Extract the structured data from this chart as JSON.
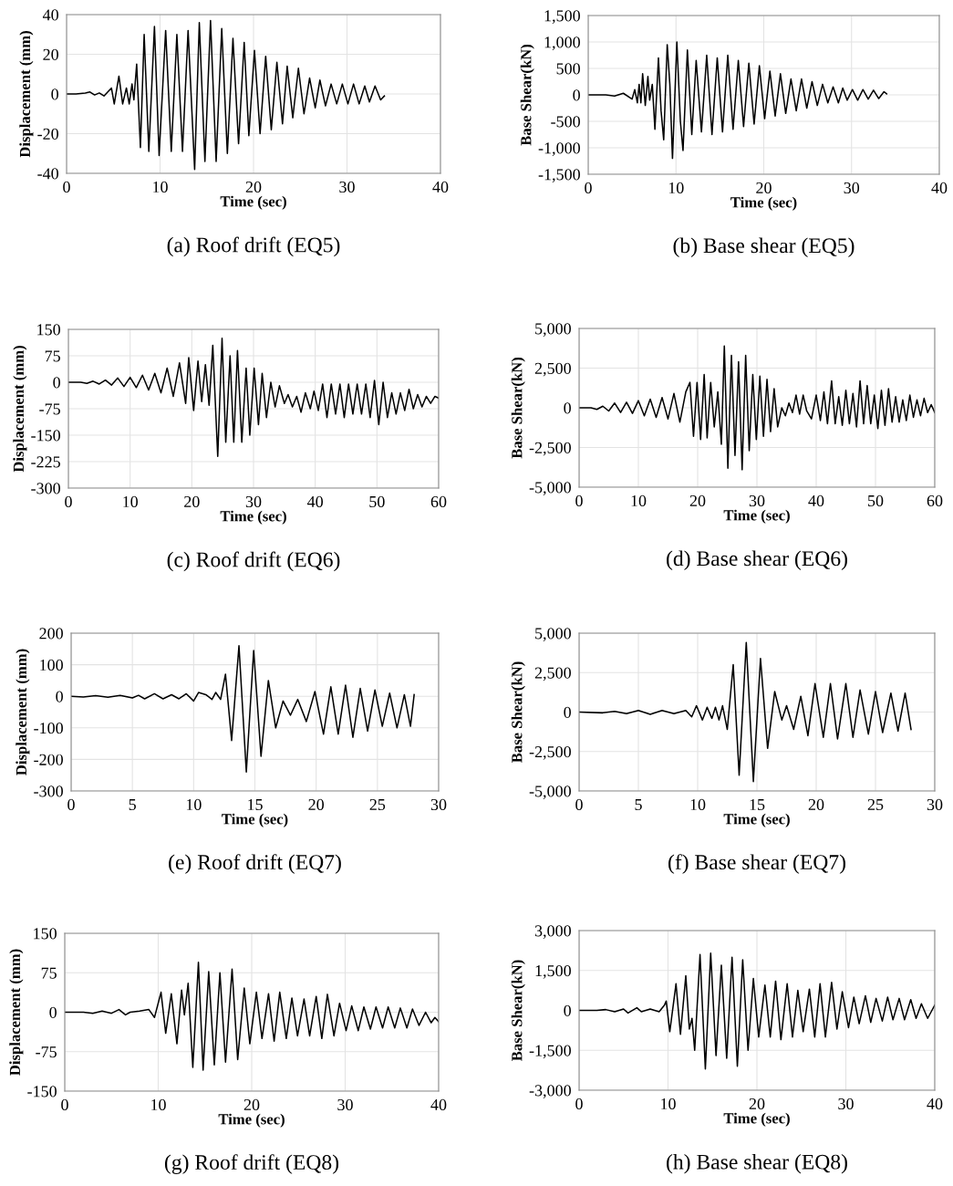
{
  "chart_data": [
    {
      "type": "line",
      "title": "(a) Roof drift (EQ5)",
      "xlabel": "Time (sec)",
      "ylabel": "Displacement (mm)",
      "color": "#000000",
      "grid": true,
      "x": [
        0,
        1,
        2,
        2.5,
        3,
        3.5,
        4,
        4.8,
        5.1,
        5.6,
        6,
        6.4,
        6.7,
        7.0,
        7.2,
        7.5,
        7.9,
        8.3,
        8.8,
        9.4,
        9.9,
        10.6,
        11.2,
        11.8,
        12.4,
        13.0,
        13.7,
        14.2,
        14.8,
        15.4,
        16.0,
        16.6,
        17.2,
        17.8,
        18.4,
        19.0,
        19.5,
        20.1,
        20.7,
        21.3,
        21.9,
        22.5,
        23.1,
        23.6,
        24.2,
        24.8,
        25.4,
        26.0,
        26.6,
        27.1,
        27.7,
        28.3,
        28.9,
        29.5,
        30.1,
        30.7,
        31.3,
        31.9,
        32.4,
        33.0,
        33.6,
        34.0
      ],
      "values": [
        0,
        0,
        0.5,
        1,
        -0.5,
        0.5,
        -1,
        3,
        -5,
        9,
        -5,
        3,
        -5,
        5,
        -3,
        15,
        -27,
        30,
        -29,
        34,
        -31,
        32,
        -29,
        30,
        -29,
        32,
        -38,
        36,
        -34,
        37,
        -34,
        33,
        -30,
        28,
        -25,
        26,
        -21,
        22,
        -20,
        19,
        -18,
        16,
        -15,
        14,
        -12,
        13,
        -10,
        8,
        -7,
        7,
        -6,
        5,
        -5,
        5,
        -5,
        5,
        -5,
        4,
        -4,
        4,
        -3,
        -1
      ],
      "xlim": [
        0,
        40
      ],
      "xticks": [
        0,
        10,
        20,
        30,
        40
      ],
      "ylim": [
        -40,
        40
      ],
      "yticks": [
        -40,
        -20,
        0,
        20,
        40
      ]
    },
    {
      "type": "line",
      "title": "(b) Base shear (EQ5)",
      "xlabel": "Time (sec)",
      "ylabel": "Base Shear(kN)",
      "color": "#000000",
      "grid": true,
      "x": [
        0,
        2,
        3,
        4,
        5,
        5.3,
        5.6,
        5.8,
        6.0,
        6.2,
        6.5,
        6.8,
        7.0,
        7.3,
        7.6,
        8.0,
        8.3,
        8.6,
        9.0,
        9.3,
        9.6,
        10.1,
        10.5,
        10.8,
        11.3,
        11.8,
        12.3,
        12.9,
        13.5,
        14.1,
        14.7,
        15.3,
        15.9,
        16.5,
        17.1,
        17.7,
        18.3,
        18.9,
        19.5,
        20.1,
        20.7,
        21.3,
        21.9,
        22.5,
        23.1,
        23.7,
        24.3,
        24.9,
        25.5,
        26.1,
        26.7,
        27.3,
        27.9,
        28.5,
        29.0,
        29.5,
        30.1,
        30.7,
        31.3,
        31.9,
        32.5,
        33.1,
        33.7,
        34.0
      ],
      "values": [
        0,
        0,
        -20,
        30,
        -80,
        100,
        -150,
        200,
        -150,
        400,
        -200,
        350,
        -100,
        200,
        -650,
        700,
        -300,
        -850,
        950,
        200,
        -1200,
        1000,
        -500,
        -1050,
        850,
        -750,
        650,
        -700,
        750,
        -750,
        700,
        -700,
        750,
        -650,
        650,
        -600,
        600,
        -550,
        550,
        -450,
        450,
        -400,
        400,
        -350,
        300,
        -300,
        300,
        -250,
        250,
        -200,
        200,
        -150,
        150,
        -150,
        130,
        -100,
        100,
        -100,
        100,
        -80,
        90,
        -70,
        60,
        20
      ],
      "xlim": [
        0,
        40
      ],
      "xticks": [
        0,
        10,
        20,
        30,
        40
      ],
      "ylim": [
        -1500,
        1500
      ],
      "yticks": [
        {
          "value": -1500,
          "label": "-1,500"
        },
        {
          "value": -1000,
          "label": "-1,000"
        },
        -500,
        0,
        500,
        {
          "value": 1000,
          "label": "1,000"
        },
        {
          "value": 1500,
          "label": "1,500"
        }
      ]
    },
    {
      "type": "line",
      "title": "(c) Roof drift (EQ6)",
      "xlabel": "Time (sec)",
      "ylabel": "Displacement (mm)",
      "color": "#000000",
      "grid": true,
      "x": [
        0,
        2,
        3,
        4,
        5,
        6,
        7,
        8,
        9,
        10,
        11,
        12,
        13,
        14,
        15,
        16,
        17,
        18,
        19,
        19.5,
        20.3,
        21,
        21.6,
        22.2,
        22.8,
        23.4,
        24.2,
        24.9,
        25.5,
        26.2,
        26.8,
        27.4,
        28.1,
        28.8,
        29.4,
        30.1,
        30.8,
        31.4,
        32.1,
        32.8,
        33.5,
        34.2,
        35.0,
        35.6,
        36.3,
        37,
        37.7,
        38.4,
        39.2,
        39.8,
        40.5,
        41.2,
        41.9,
        42.6,
        43.3,
        44,
        44.7,
        45.4,
        46.1,
        46.8,
        47.5,
        48.2,
        48.9,
        49.6,
        50.3,
        51,
        51.7,
        52.4,
        53.1,
        53.8,
        54.5,
        55.2,
        55.9,
        56.6,
        57.3,
        58,
        58.7,
        59.4,
        60
      ],
      "values": [
        0,
        0,
        -3,
        3,
        -5,
        6,
        -8,
        12,
        -12,
        14,
        -15,
        20,
        -22,
        25,
        -30,
        40,
        -40,
        55,
        -60,
        70,
        -80,
        60,
        -55,
        50,
        -65,
        105,
        -210,
        125,
        -170,
        75,
        -170,
        90,
        -170,
        40,
        -150,
        40,
        -120,
        25,
        -100,
        0,
        -70,
        -10,
        -60,
        -35,
        -70,
        -40,
        -85,
        -30,
        -75,
        -25,
        -80,
        -5,
        -100,
        -5,
        -90,
        -5,
        -100,
        -5,
        -90,
        -5,
        -90,
        -5,
        -100,
        5,
        -120,
        0,
        -100,
        -30,
        -90,
        -30,
        -80,
        -20,
        -75,
        -35,
        -70,
        -40,
        -60,
        -40,
        -45
      ],
      "xlim": [
        0,
        60
      ],
      "xticks": [
        0,
        10,
        20,
        30,
        40,
        50,
        60
      ],
      "ylim": [
        -300,
        150
      ],
      "yticks": [
        -300,
        -225,
        -150,
        -75,
        0,
        75,
        150
      ]
    },
    {
      "type": "line",
      "title": "(d) Base shear (EQ6)",
      "xlabel": "Time (sec)",
      "ylabel": "Base Shear(kN)",
      "color": "#000000",
      "grid": true,
      "x": [
        0,
        2,
        3,
        4,
        5,
        6,
        7,
        8,
        9,
        10,
        11,
        12,
        13,
        14,
        15,
        16,
        17,
        18,
        18.7,
        19.3,
        19.9,
        20.5,
        21.1,
        21.6,
        22.2,
        22.8,
        23.4,
        24.0,
        24.5,
        25.1,
        25.7,
        26.3,
        26.9,
        27.5,
        28.1,
        28.7,
        29.3,
        29.9,
        30.5,
        31.1,
        31.7,
        32.3,
        32.9,
        33.5,
        34.2,
        34.8,
        35.4,
        36,
        36.6,
        37.2,
        37.8,
        38.4,
        39.2,
        40,
        40.7,
        41.3,
        41.9,
        42.6,
        43.2,
        43.8,
        44.4,
        45,
        45.6,
        46.2,
        46.8,
        47.4,
        48,
        48.6,
        49.2,
        49.8,
        50.4,
        51,
        51.6,
        52.2,
        52.8,
        53.4,
        54,
        54.6,
        55.2,
        55.8,
        56.4,
        57,
        57.6,
        58.2,
        58.8,
        59.4,
        60
      ],
      "values": [
        0,
        0,
        -100,
        100,
        -200,
        300,
        -300,
        350,
        -350,
        450,
        -500,
        550,
        -600,
        650,
        -700,
        900,
        -900,
        1000,
        1600,
        -1800,
        1600,
        -2000,
        2100,
        -1900,
        1600,
        -1200,
        1000,
        -2300,
        3900,
        -3800,
        3300,
        -3000,
        2900,
        -3900,
        3300,
        -2700,
        2100,
        -2000,
        2000,
        -1800,
        1800,
        -1500,
        1200,
        -1200,
        0,
        -500,
        300,
        -300,
        800,
        -400,
        800,
        -200,
        -700,
        800,
        -800,
        1000,
        -1000,
        1700,
        -1000,
        700,
        -1100,
        1100,
        -1000,
        900,
        -1200,
        1700,
        -1000,
        1400,
        -1000,
        800,
        -1300,
        1100,
        -1100,
        1200,
        -900,
        700,
        -900,
        500,
        -800,
        800,
        -600,
        500,
        -500,
        600,
        -300,
        200,
        -300
      ],
      "xlim": [
        0,
        60
      ],
      "xticks": [
        0,
        10,
        20,
        30,
        40,
        50,
        60
      ],
      "ylim": [
        -5000,
        5000
      ],
      "yticks": [
        {
          "value": -5000,
          "label": "-5,000"
        },
        {
          "value": -2500,
          "label": "-2,500"
        },
        0,
        {
          "value": 2500,
          "label": "2,500"
        },
        {
          "value": 5000,
          "label": "5,000"
        }
      ]
    },
    {
      "type": "line",
      "title": "(e) Roof drift (EQ7)",
      "xlabel": "Time (sec)",
      "ylabel": "Displacement (mm)",
      "color": "#000000",
      "grid": true,
      "x": [
        0,
        1,
        2,
        3,
        4,
        5,
        5.5,
        6,
        6.8,
        7.5,
        8.2,
        8.8,
        9.4,
        10,
        10.4,
        11,
        11.5,
        11.8,
        12.2,
        12.6,
        13.1,
        13.7,
        14.3,
        14.9,
        15.5,
        16.1,
        16.7,
        17.3,
        17.9,
        18.5,
        19.2,
        19.9,
        20.6,
        21.2,
        21.8,
        22.4,
        23.0,
        23.6,
        24.2,
        24.8,
        25.4,
        26.0,
        26.6,
        27.2,
        27.7,
        28
      ],
      "values": [
        0,
        -2,
        2,
        -3,
        3,
        -5,
        3,
        -8,
        8,
        -8,
        5,
        -8,
        8,
        -15,
        12,
        5,
        -10,
        12,
        -10,
        70,
        -140,
        160,
        -240,
        145,
        -190,
        50,
        -100,
        -15,
        -60,
        -10,
        -80,
        15,
        -120,
        30,
        -120,
        35,
        -130,
        25,
        -110,
        20,
        -95,
        10,
        -100,
        5,
        -95,
        5
      ],
      "xlim": [
        0,
        30
      ],
      "xticks": [
        0,
        5,
        10,
        15,
        20,
        25,
        30
      ],
      "ylim": [
        -300,
        200
      ],
      "yticks": [
        -300,
        -200,
        -100,
        0,
        100,
        200
      ]
    },
    {
      "type": "line",
      "title": "(f) Base shear (EQ7)",
      "xlabel": "Time (sec)",
      "ylabel": "Base Shear(kN)",
      "color": "#000000",
      "grid": true,
      "x": [
        0,
        2,
        3,
        4,
        5,
        6,
        7,
        8,
        9,
        9.5,
        9.9,
        10.4,
        10.8,
        11.2,
        11.5,
        11.8,
        12.1,
        12.5,
        13.0,
        13.5,
        14.1,
        14.7,
        15.3,
        15.9,
        16.5,
        17.1,
        17.5,
        18.1,
        18.7,
        19.3,
        19.9,
        20.6,
        21.2,
        21.8,
        22.5,
        23.1,
        23.7,
        24.4,
        25,
        25.6,
        26.3,
        26.9,
        27.5,
        28
      ],
      "values": [
        0,
        -50,
        50,
        -100,
        100,
        -150,
        100,
        -100,
        100,
        -300,
        400,
        -500,
        300,
        -400,
        300,
        -500,
        400,
        -1100,
        3000,
        -4000,
        4400,
        -4400,
        3400,
        -2300,
        1300,
        -500,
        400,
        -1100,
        1000,
        -1500,
        1800,
        -1600,
        1800,
        -1700,
        1800,
        -1600,
        1400,
        -1400,
        1300,
        -1300,
        1200,
        -1200,
        1200,
        -1100
      ],
      "xlim": [
        0,
        30
      ],
      "xticks": [
        0,
        5,
        10,
        15,
        20,
        25,
        30
      ],
      "ylim": [
        -5000,
        5000
      ],
      "yticks": [
        {
          "value": -5000,
          "label": "-5,000"
        },
        {
          "value": -2500,
          "label": "-2,500"
        },
        0,
        {
          "value": 2500,
          "label": "2,500"
        },
        {
          "value": 5000,
          "label": "5,000"
        }
      ]
    },
    {
      "type": "line",
      "title": "(g) Roof drift (EQ8)",
      "xlabel": "Time (sec)",
      "ylabel": "Displacement (mm)",
      "color": "#000000",
      "grid": true,
      "x": [
        0,
        2,
        3,
        4,
        5,
        5.8,
        6.5,
        7,
        8,
        9,
        9.6,
        10.3,
        10.8,
        11.4,
        12,
        12.5,
        12.8,
        13.2,
        13.7,
        14.3,
        14.8,
        15.4,
        16,
        16.6,
        17.2,
        17.9,
        18.5,
        19.2,
        19.8,
        20.5,
        21.1,
        21.8,
        22.4,
        23,
        23.7,
        24.3,
        24.9,
        25.6,
        26.2,
        26.9,
        27.5,
        28.1,
        28.8,
        29.4,
        30.1,
        30.7,
        31.4,
        32,
        32.7,
        33.3,
        34,
        34.6,
        35.3,
        35.9,
        36.6,
        37.2,
        37.9,
        38.6,
        39.2,
        39.6,
        40
      ],
      "values": [
        0,
        0,
        -2,
        2,
        -2,
        5,
        -5,
        0,
        2,
        5,
        -10,
        38,
        -40,
        35,
        -60,
        42,
        -5,
        55,
        -105,
        95,
        -110,
        77,
        -100,
        75,
        -95,
        82,
        -90,
        46,
        -60,
        38,
        -50,
        35,
        -55,
        38,
        -50,
        27,
        -45,
        25,
        -45,
        30,
        -50,
        34,
        -45,
        17,
        -35,
        12,
        -35,
        10,
        -32,
        10,
        -30,
        10,
        -30,
        8,
        -30,
        6,
        -25,
        0,
        -20,
        -10,
        -18
      ],
      "xlim": [
        0,
        40
      ],
      "xticks": [
        0,
        10,
        20,
        30,
        40
      ],
      "ylim": [
        -150,
        150
      ],
      "yticks": [
        -150,
        -75,
        0,
        75,
        150
      ]
    },
    {
      "type": "line",
      "title": "(h) Base shear (EQ8)",
      "xlabel": "Time (sec)",
      "ylabel": "Base Shear(kN)",
      "color": "#000000",
      "grid": true,
      "x": [
        0,
        2,
        3,
        4,
        5,
        5.5,
        6.5,
        7,
        8,
        9,
        9.6,
        9.8,
        10.2,
        10.9,
        11.4,
        12,
        12.4,
        12.7,
        13,
        13.6,
        14.2,
        14.8,
        15.4,
        16,
        16.6,
        17.2,
        17.8,
        18.4,
        19,
        19.6,
        20.2,
        20.9,
        21.5,
        22.1,
        22.7,
        23.4,
        24,
        24.6,
        25.2,
        25.9,
        26.5,
        27.1,
        27.7,
        28.4,
        29,
        29.6,
        30.3,
        30.9,
        31.5,
        32.2,
        32.8,
        33.4,
        34.1,
        34.7,
        35.3,
        36,
        36.6,
        37.3,
        37.9,
        38.5,
        39.2,
        40
      ],
      "values": [
        0,
        0,
        30,
        -50,
        50,
        -100,
        100,
        -50,
        50,
        -50,
        200,
        350,
        -800,
        1000,
        -900,
        1300,
        -700,
        -300,
        -1500,
        2100,
        -2200,
        2150,
        -1700,
        1700,
        -1800,
        2000,
        -2100,
        1900,
        -1500,
        1200,
        -1000,
        950,
        -1000,
        1100,
        -1100,
        1000,
        -1000,
        750,
        -800,
        800,
        -1000,
        1000,
        -1000,
        1050,
        -700,
        700,
        -650,
        500,
        -500,
        550,
        -450,
        450,
        -400,
        500,
        -350,
        450,
        -350,
        400,
        -300,
        250,
        -300,
        200
      ],
      "xlim": [
        0,
        40
      ],
      "xticks": [
        0,
        10,
        20,
        30,
        40
      ],
      "ylim": [
        -3000,
        3000
      ],
      "yticks": [
        {
          "value": -3000,
          "label": "-3,000"
        },
        {
          "value": -1500,
          "label": "-1,500"
        },
        0,
        {
          "value": 1500,
          "label": "1,500"
        },
        {
          "value": 3000,
          "label": "3,000"
        }
      ]
    }
  ]
}
